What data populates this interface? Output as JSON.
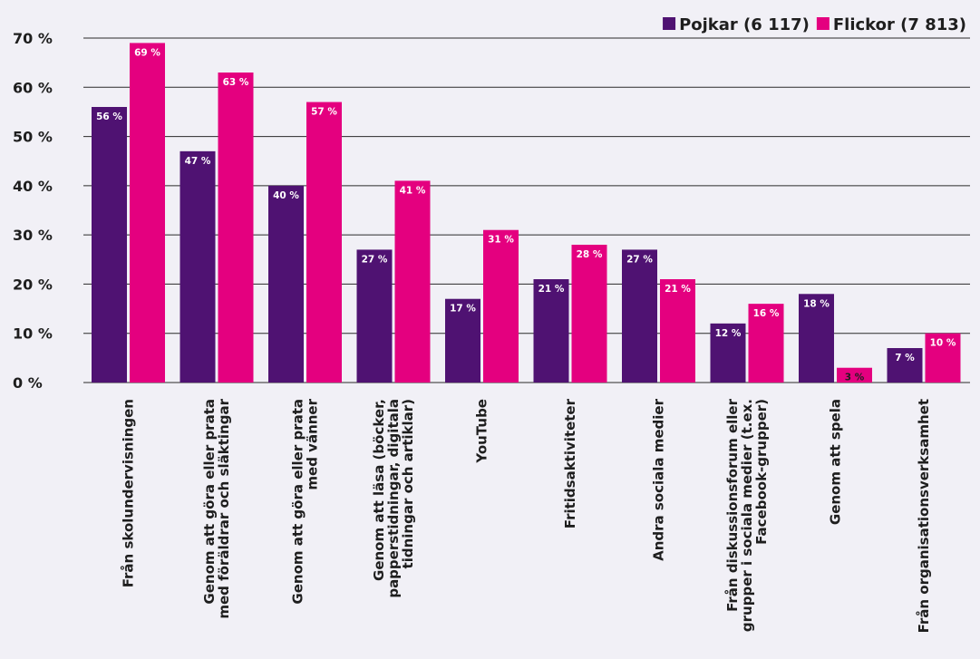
{
  "chart_data": {
    "type": "bar",
    "categories": [
      [
        "Från skolundervisningen"
      ],
      [
        "Genom att göra eller prata",
        "med föräldrar och släktingar"
      ],
      [
        "Genom att göra eller prata",
        "med vänner"
      ],
      [
        "Genom att läsa (böcker,",
        "papperstidningar, digitala",
        "tidningar och artiklar)"
      ],
      [
        "YouTube"
      ],
      [
        "Fritidsaktiviteter"
      ],
      [
        "Andra sociala medier"
      ],
      [
        "Från diskussionsforum eller",
        "grupper i sociala medier (t.ex.",
        "Facebook-grupper)"
      ],
      [
        "Genom att spela"
      ],
      [
        "Från organisationsverksamhet"
      ]
    ],
    "series": [
      {
        "name": "Pojkar (6 117)",
        "color": "#4f1272",
        "label_color": "#ffffff",
        "values": [
          56,
          47,
          40,
          27,
          17,
          21,
          27,
          12,
          18,
          7
        ]
      },
      {
        "name": "Flickor (7 813)",
        "color": "#e4007f",
        "label_color": "#ffffff",
        "values": [
          69,
          63,
          57,
          41,
          31,
          28,
          21,
          16,
          3,
          10
        ]
      }
    ],
    "yticks": [
      "0 %",
      "10 %",
      "20 %",
      "30 %",
      "40 %",
      "50 %",
      "60 %",
      "70 %"
    ],
    "ylim": [
      0,
      70
    ],
    "value_suffix": " %",
    "grid": true,
    "legend_position": "top-right",
    "title": "",
    "xlabel": "",
    "ylabel": ""
  }
}
